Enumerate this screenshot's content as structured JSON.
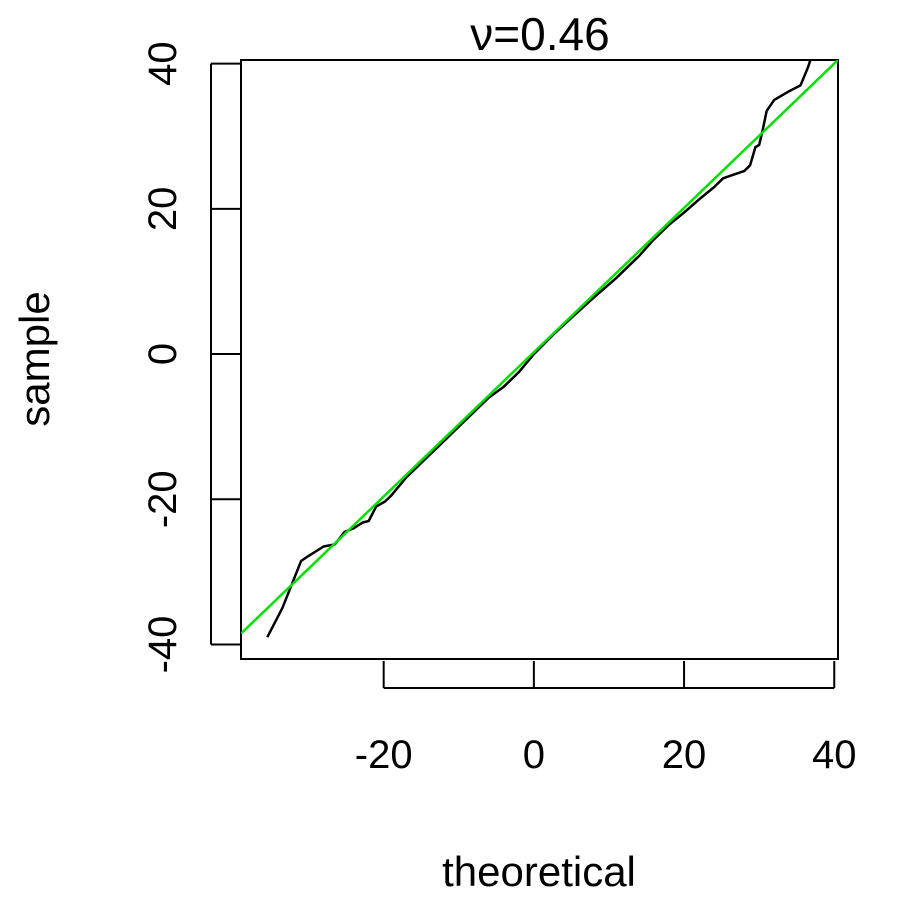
{
  "chart_data": {
    "type": "line",
    "title": "ν=0.46",
    "xlabel": "theoretical",
    "ylabel": "sample",
    "xlim": [
      -39,
      40.5
    ],
    "ylim": [
      -42,
      40.5
    ],
    "xticks": [
      -20,
      0,
      20,
      40
    ],
    "xtick_labels": [
      "-20",
      "0",
      "20",
      "40"
    ],
    "yticks": [
      -40,
      -20,
      0,
      20,
      40
    ],
    "ytick_labels": [
      "-40",
      "-20",
      "0",
      "20",
      "40"
    ],
    "grid": false,
    "legend": "none",
    "series": [
      {
        "color": "#000000",
        "x": [
          -35.5,
          -33.5,
          -31.0,
          -30.0,
          -28.0,
          -26.5,
          -25.2,
          -24.0,
          -22.8,
          -22.0,
          -21.0,
          -19.8,
          -19.0,
          -17.0,
          -15.0,
          -12.0,
          -9.0,
          -6.0,
          -4.0,
          -2.0,
          0.0,
          2.5,
          5.0,
          8.0,
          11.0,
          14.0,
          16.0,
          18.0,
          20.0,
          22.0,
          24.0,
          25.2,
          26.0,
          28.0,
          28.8,
          29.5,
          30.0,
          30.5,
          31.0,
          32.0,
          34.0,
          35.5,
          36.5,
          37.3
        ],
        "y": [
          -39.0,
          -35.0,
          -28.5,
          -27.8,
          -26.5,
          -26.2,
          -24.5,
          -24.0,
          -23.2,
          -23.0,
          -21.0,
          -20.3,
          -19.5,
          -17.0,
          -15.0,
          -12.0,
          -9.0,
          -6.0,
          -4.5,
          -2.5,
          0.0,
          2.6,
          5.0,
          7.8,
          10.5,
          13.5,
          15.8,
          17.8,
          19.5,
          21.3,
          23.0,
          24.2,
          24.5,
          25.2,
          26.0,
          28.5,
          28.8,
          31.0,
          33.5,
          35.0,
          36.2,
          37.0,
          39.5,
          42.0
        ]
      },
      {
        "color": "#00e000",
        "x": [
          -39,
          40.5
        ],
        "y": [
          -38.5,
          40.5
        ]
      }
    ]
  }
}
